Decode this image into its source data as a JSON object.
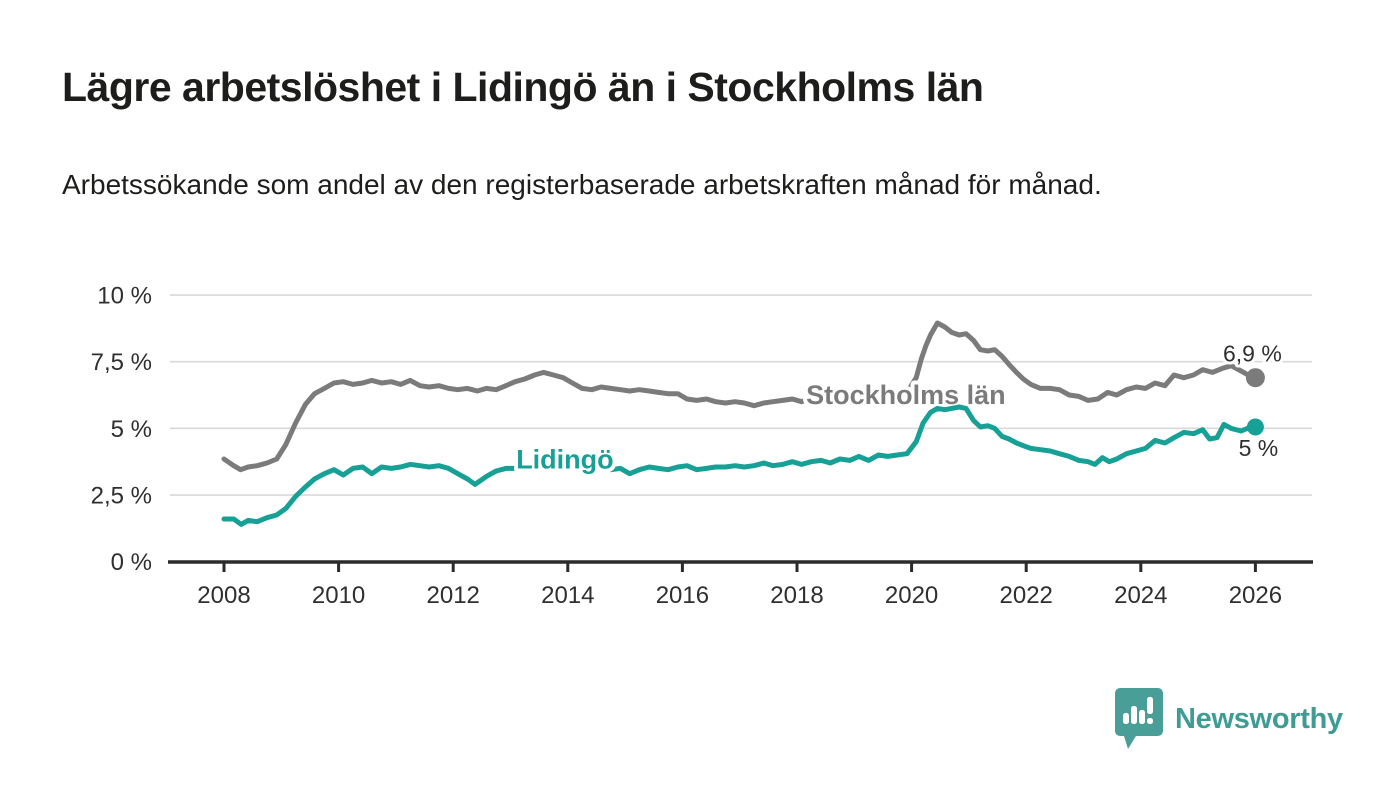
{
  "header": {
    "title": "Lägre arbetslöshet i Lidingö än i Stockholms län",
    "subtitle": "Arbetssökande som andel av den registerbaserade arbetskraften månad för månad."
  },
  "footer": {
    "brand": "Newsworthy",
    "brand_color": "#3f9c95",
    "icon_color": "#4a9e98"
  },
  "chart_data": {
    "type": "line",
    "title": "Lägre arbetslöshet i Lidingö än i Stockholms län",
    "ylabel": "",
    "xlabel": "",
    "unit": "%",
    "grid": true,
    "legend_position": "inline-labels",
    "colors": {
      "gridline": "#d9d9d9",
      "axis": "#2b2b2b",
      "tick_text": "#2f2f2f"
    },
    "y_axis": {
      "range": [
        0,
        10
      ],
      "ticks": [
        {
          "value": 0,
          "label": "0 %"
        },
        {
          "value": 2.5,
          "label": "2,5 %"
        },
        {
          "value": 5,
          "label": "5 %"
        },
        {
          "value": 7.5,
          "label": "7,5 %"
        },
        {
          "value": 10,
          "label": "10 %"
        }
      ]
    },
    "x_axis": {
      "range": [
        2007.1,
        2027.0
      ],
      "ticks": [
        {
          "value": 2008,
          "label": "2008"
        },
        {
          "value": 2010,
          "label": "2010"
        },
        {
          "value": 2012,
          "label": "2012"
        },
        {
          "value": 2014,
          "label": "2014"
        },
        {
          "value": 2016,
          "label": "2016"
        },
        {
          "value": 2018,
          "label": "2018"
        },
        {
          "value": 2020,
          "label": "2020"
        },
        {
          "value": 2022,
          "label": "2022"
        },
        {
          "value": 2024,
          "label": "2024"
        },
        {
          "value": 2026,
          "label": "2026"
        }
      ]
    },
    "series": [
      {
        "name": "Stockholms län",
        "color": "#7b7b7b",
        "inline_label": {
          "text": "Stockholms län",
          "x": 2019.9,
          "y": 5.91
        },
        "end_label": "6,9 %",
        "end_label_offset": [
          -3,
          -16
        ],
        "dot_radius": 9.5,
        "points": [
          [
            2008.0,
            3.85
          ],
          [
            2008.17,
            3.6
          ],
          [
            2008.29,
            3.45
          ],
          [
            2008.42,
            3.55
          ],
          [
            2008.58,
            3.6
          ],
          [
            2008.75,
            3.7
          ],
          [
            2008.92,
            3.85
          ],
          [
            2009.08,
            4.4
          ],
          [
            2009.25,
            5.2
          ],
          [
            2009.42,
            5.9
          ],
          [
            2009.58,
            6.3
          ],
          [
            2009.75,
            6.5
          ],
          [
            2009.92,
            6.7
          ],
          [
            2010.08,
            6.75
          ],
          [
            2010.25,
            6.65
          ],
          [
            2010.42,
            6.7
          ],
          [
            2010.58,
            6.8
          ],
          [
            2010.75,
            6.7
          ],
          [
            2010.92,
            6.75
          ],
          [
            2011.08,
            6.65
          ],
          [
            2011.25,
            6.8
          ],
          [
            2011.42,
            6.6
          ],
          [
            2011.58,
            6.55
          ],
          [
            2011.75,
            6.6
          ],
          [
            2011.92,
            6.5
          ],
          [
            2012.08,
            6.45
          ],
          [
            2012.25,
            6.5
          ],
          [
            2012.42,
            6.4
          ],
          [
            2012.58,
            6.5
          ],
          [
            2012.75,
            6.45
          ],
          [
            2012.92,
            6.6
          ],
          [
            2013.08,
            6.75
          ],
          [
            2013.25,
            6.85
          ],
          [
            2013.42,
            7.0
          ],
          [
            2013.58,
            7.1
          ],
          [
            2013.75,
            7.0
          ],
          [
            2013.92,
            6.9
          ],
          [
            2014.08,
            6.7
          ],
          [
            2014.25,
            6.5
          ],
          [
            2014.42,
            6.45
          ],
          [
            2014.58,
            6.55
          ],
          [
            2014.75,
            6.5
          ],
          [
            2014.92,
            6.45
          ],
          [
            2015.08,
            6.4
          ],
          [
            2015.25,
            6.45
          ],
          [
            2015.42,
            6.4
          ],
          [
            2015.58,
            6.35
          ],
          [
            2015.75,
            6.3
          ],
          [
            2015.92,
            6.3
          ],
          [
            2016.08,
            6.1
          ],
          [
            2016.25,
            6.05
          ],
          [
            2016.42,
            6.1
          ],
          [
            2016.58,
            6.0
          ],
          [
            2016.75,
            5.95
          ],
          [
            2016.92,
            6.0
          ],
          [
            2017.08,
            5.95
          ],
          [
            2017.25,
            5.85
          ],
          [
            2017.42,
            5.95
          ],
          [
            2017.58,
            6.0
          ],
          [
            2017.75,
            6.05
          ],
          [
            2017.92,
            6.1
          ],
          [
            2018.08,
            6.0
          ],
          [
            2018.25,
            6.15
          ],
          [
            2018.42,
            6.1
          ],
          [
            2018.58,
            6.05
          ],
          [
            2018.75,
            6.15
          ],
          [
            2018.92,
            6.1
          ],
          [
            2019.08,
            6.2
          ],
          [
            2019.25,
            6.15
          ],
          [
            2019.42,
            6.3
          ],
          [
            2019.58,
            6.25
          ],
          [
            2019.75,
            6.3
          ],
          [
            2019.92,
            6.35
          ],
          [
            2020.08,
            6.9
          ],
          [
            2020.17,
            7.6
          ],
          [
            2020.25,
            8.1
          ],
          [
            2020.33,
            8.5
          ],
          [
            2020.45,
            8.95
          ],
          [
            2020.58,
            8.8
          ],
          [
            2020.7,
            8.6
          ],
          [
            2020.83,
            8.5
          ],
          [
            2020.95,
            8.55
          ],
          [
            2021.08,
            8.3
          ],
          [
            2021.2,
            7.95
          ],
          [
            2021.33,
            7.9
          ],
          [
            2021.45,
            7.95
          ],
          [
            2021.58,
            7.7
          ],
          [
            2021.7,
            7.4
          ],
          [
            2021.83,
            7.1
          ],
          [
            2021.95,
            6.85
          ],
          [
            2022.08,
            6.65
          ],
          [
            2022.25,
            6.5
          ],
          [
            2022.42,
            6.5
          ],
          [
            2022.58,
            6.45
          ],
          [
            2022.75,
            6.25
          ],
          [
            2022.92,
            6.2
          ],
          [
            2023.08,
            6.05
          ],
          [
            2023.25,
            6.1
          ],
          [
            2023.42,
            6.35
          ],
          [
            2023.58,
            6.25
          ],
          [
            2023.75,
            6.45
          ],
          [
            2023.92,
            6.55
          ],
          [
            2024.08,
            6.5
          ],
          [
            2024.25,
            6.7
          ],
          [
            2024.42,
            6.6
          ],
          [
            2024.58,
            7.0
          ],
          [
            2024.75,
            6.9
          ],
          [
            2024.92,
            7.0
          ],
          [
            2025.08,
            7.2
          ],
          [
            2025.25,
            7.1
          ],
          [
            2025.42,
            7.25
          ],
          [
            2025.58,
            7.35
          ],
          [
            2025.75,
            7.15
          ],
          [
            2025.92,
            6.95
          ],
          [
            2026.0,
            6.9
          ]
        ]
      },
      {
        "name": "Lidingö",
        "color": "#17a096",
        "inline_label": {
          "text": "Lidingö",
          "x": 2013.95,
          "y": 3.5
        },
        "end_label": "5 %",
        "end_label_offset": [
          3,
          29
        ],
        "dot_radius": 8.5,
        "points": [
          [
            2008.0,
            1.6
          ],
          [
            2008.17,
            1.6
          ],
          [
            2008.3,
            1.4
          ],
          [
            2008.42,
            1.55
          ],
          [
            2008.58,
            1.5
          ],
          [
            2008.75,
            1.65
          ],
          [
            2008.92,
            1.75
          ],
          [
            2009.08,
            2.0
          ],
          [
            2009.25,
            2.45
          ],
          [
            2009.42,
            2.8
          ],
          [
            2009.58,
            3.1
          ],
          [
            2009.75,
            3.3
          ],
          [
            2009.92,
            3.45
          ],
          [
            2010.08,
            3.25
          ],
          [
            2010.25,
            3.5
          ],
          [
            2010.42,
            3.55
          ],
          [
            2010.58,
            3.3
          ],
          [
            2010.75,
            3.55
          ],
          [
            2010.92,
            3.5
          ],
          [
            2011.08,
            3.55
          ],
          [
            2011.25,
            3.65
          ],
          [
            2011.42,
            3.6
          ],
          [
            2011.58,
            3.55
          ],
          [
            2011.75,
            3.6
          ],
          [
            2011.92,
            3.5
          ],
          [
            2012.08,
            3.3
          ],
          [
            2012.25,
            3.1
          ],
          [
            2012.38,
            2.9
          ],
          [
            2012.58,
            3.2
          ],
          [
            2012.75,
            3.4
          ],
          [
            2012.92,
            3.5
          ],
          [
            2013.08,
            3.5
          ],
          [
            2013.25,
            3.65
          ],
          [
            2013.42,
            3.6
          ],
          [
            2013.58,
            3.55
          ],
          [
            2013.75,
            3.6
          ],
          [
            2013.92,
            3.55
          ],
          [
            2014.08,
            3.5
          ],
          [
            2014.25,
            3.55
          ],
          [
            2014.42,
            3.5
          ],
          [
            2014.58,
            3.55
          ],
          [
            2014.75,
            3.45
          ],
          [
            2014.92,
            3.5
          ],
          [
            2015.08,
            3.3
          ],
          [
            2015.25,
            3.45
          ],
          [
            2015.42,
            3.55
          ],
          [
            2015.58,
            3.5
          ],
          [
            2015.75,
            3.45
          ],
          [
            2015.92,
            3.55
          ],
          [
            2016.08,
            3.6
          ],
          [
            2016.25,
            3.45
          ],
          [
            2016.42,
            3.5
          ],
          [
            2016.58,
            3.55
          ],
          [
            2016.75,
            3.55
          ],
          [
            2016.92,
            3.6
          ],
          [
            2017.08,
            3.55
          ],
          [
            2017.25,
            3.6
          ],
          [
            2017.42,
            3.7
          ],
          [
            2017.58,
            3.6
          ],
          [
            2017.75,
            3.65
          ],
          [
            2017.92,
            3.75
          ],
          [
            2018.08,
            3.65
          ],
          [
            2018.25,
            3.75
          ],
          [
            2018.42,
            3.8
          ],
          [
            2018.58,
            3.7
          ],
          [
            2018.75,
            3.85
          ],
          [
            2018.92,
            3.8
          ],
          [
            2019.08,
            3.95
          ],
          [
            2019.25,
            3.8
          ],
          [
            2019.42,
            4.0
          ],
          [
            2019.58,
            3.95
          ],
          [
            2019.75,
            4.0
          ],
          [
            2019.92,
            4.05
          ],
          [
            2020.08,
            4.5
          ],
          [
            2020.2,
            5.2
          ],
          [
            2020.33,
            5.6
          ],
          [
            2020.45,
            5.75
          ],
          [
            2020.58,
            5.7
          ],
          [
            2020.7,
            5.75
          ],
          [
            2020.83,
            5.8
          ],
          [
            2020.95,
            5.75
          ],
          [
            2021.08,
            5.3
          ],
          [
            2021.2,
            5.05
          ],
          [
            2021.33,
            5.1
          ],
          [
            2021.45,
            5.0
          ],
          [
            2021.58,
            4.7
          ],
          [
            2021.7,
            4.6
          ],
          [
            2021.83,
            4.45
          ],
          [
            2021.95,
            4.35
          ],
          [
            2022.08,
            4.25
          ],
          [
            2022.25,
            4.2
          ],
          [
            2022.42,
            4.15
          ],
          [
            2022.58,
            4.05
          ],
          [
            2022.75,
            3.95
          ],
          [
            2022.92,
            3.8
          ],
          [
            2023.08,
            3.75
          ],
          [
            2023.2,
            3.65
          ],
          [
            2023.33,
            3.9
          ],
          [
            2023.45,
            3.75
          ],
          [
            2023.58,
            3.85
          ],
          [
            2023.75,
            4.05
          ],
          [
            2023.92,
            4.15
          ],
          [
            2024.08,
            4.25
          ],
          [
            2024.25,
            4.55
          ],
          [
            2024.42,
            4.45
          ],
          [
            2024.58,
            4.65
          ],
          [
            2024.75,
            4.85
          ],
          [
            2024.92,
            4.8
          ],
          [
            2025.08,
            4.95
          ],
          [
            2025.2,
            4.6
          ],
          [
            2025.33,
            4.65
          ],
          [
            2025.45,
            5.15
          ],
          [
            2025.58,
            5.0
          ],
          [
            2025.75,
            4.9
          ],
          [
            2025.92,
            5.05
          ],
          [
            2026.0,
            5.05
          ]
        ]
      }
    ]
  }
}
